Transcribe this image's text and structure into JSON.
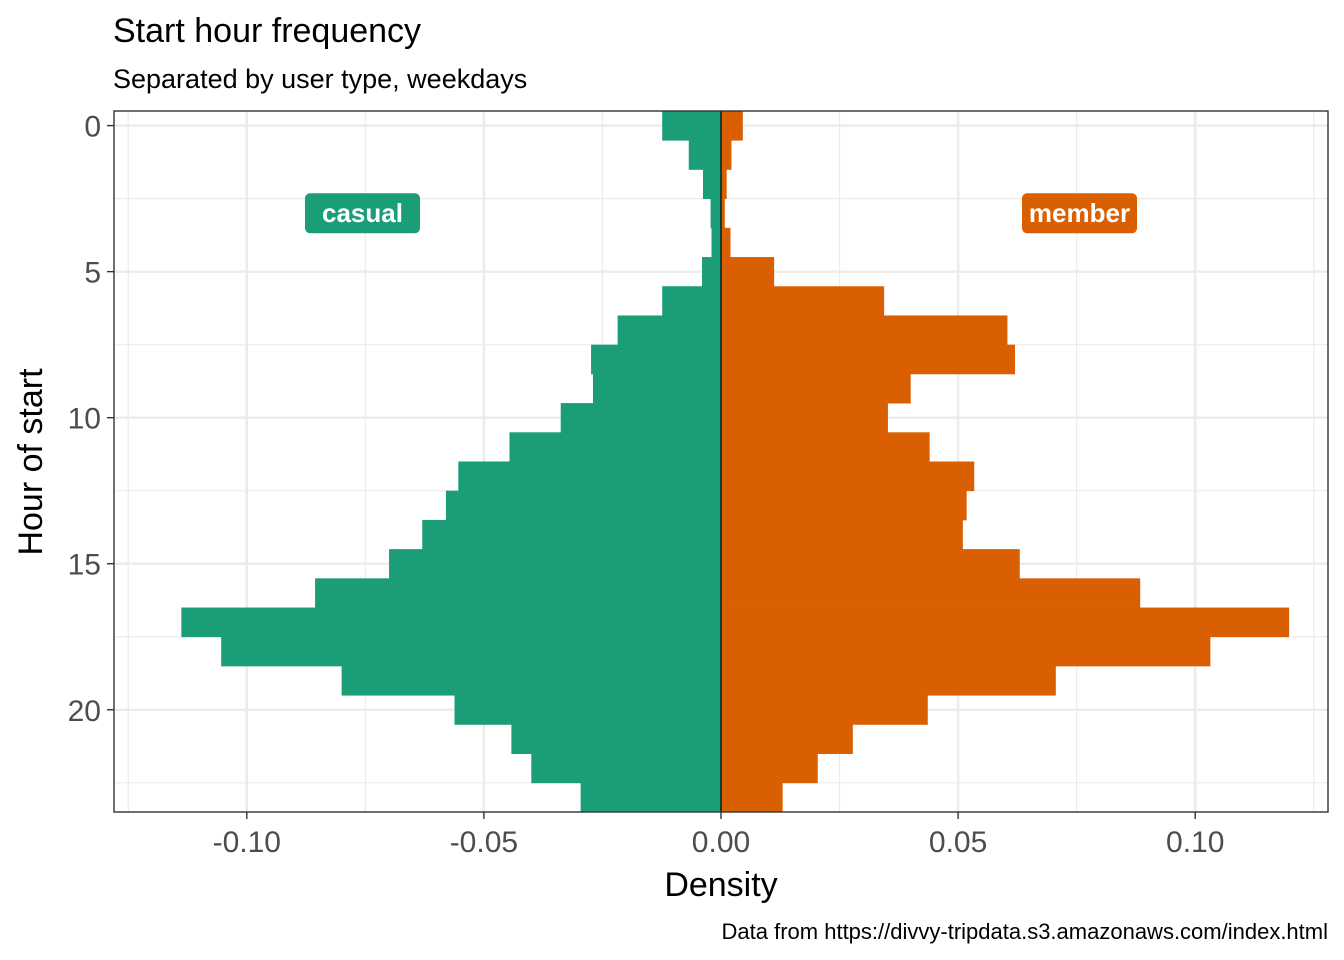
{
  "chart_data": {
    "type": "bar",
    "orientation": "horizontal",
    "title": "Start hour frequency",
    "subtitle": "Separated by user type, weekdays",
    "xlabel": "Density",
    "ylabel": "Hour of start",
    "caption": "Data from https://divvy-tripdata.s3.amazonaws.com/index.html",
    "xlim": [
      -0.128,
      0.128
    ],
    "ylim": [
      23.5,
      -0.5
    ],
    "x_ticks": [
      -0.1,
      -0.05,
      0.0,
      0.05,
      0.1
    ],
    "x_tick_labels": [
      "-0.10",
      "-0.05",
      "0.00",
      "0.05",
      "0.10"
    ],
    "y_ticks": [
      0,
      5,
      10,
      15,
      20
    ],
    "y_tick_labels": [
      "0",
      "5",
      "10",
      "15",
      "20"
    ],
    "y_reversed": true,
    "grid": true,
    "hours": [
      0,
      1,
      2,
      3,
      4,
      5,
      6,
      7,
      8,
      9,
      10,
      11,
      12,
      13,
      14,
      15,
      16,
      17,
      18,
      19,
      20,
      21,
      22,
      23
    ],
    "series": [
      {
        "name": "casual",
        "color": "#1b9e77",
        "values": [
          -0.0124,
          -0.0068,
          -0.0038,
          -0.0022,
          -0.002,
          -0.004,
          -0.0124,
          -0.0218,
          -0.0274,
          -0.027,
          -0.0338,
          -0.0446,
          -0.0554,
          -0.058,
          -0.063,
          -0.07,
          -0.0856,
          -0.1138,
          -0.1054,
          -0.08,
          -0.0562,
          -0.0442,
          -0.04,
          -0.0296
        ]
      },
      {
        "name": "member",
        "color": "#d95f02",
        "values": [
          0.0046,
          0.0022,
          0.0012,
          0.0008,
          0.002,
          0.0112,
          0.0344,
          0.0604,
          0.062,
          0.04,
          0.0352,
          0.044,
          0.0534,
          0.0518,
          0.051,
          0.063,
          0.0884,
          0.1198,
          0.1032,
          0.0706,
          0.0436,
          0.0278,
          0.0204,
          0.013
        ]
      }
    ],
    "annotations": [
      {
        "label": "casual",
        "x": -0.0756,
        "y": 3,
        "color": "#1b9e77"
      },
      {
        "label": "member",
        "x": 0.0756,
        "y": 3,
        "color": "#d95f02"
      }
    ]
  }
}
